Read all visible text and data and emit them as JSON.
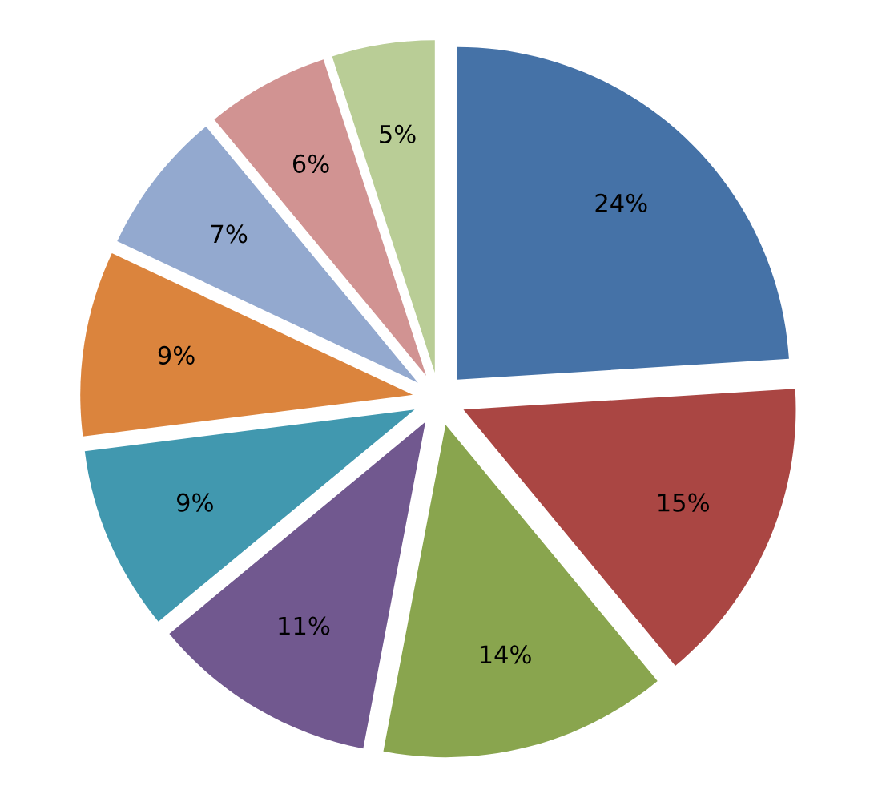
{
  "chart_data": {
    "type": "pie",
    "categories": [
      null,
      null,
      null,
      null,
      null,
      null,
      null,
      null,
      null
    ],
    "values": [
      24,
      15,
      14,
      11,
      9,
      9,
      7,
      6,
      5
    ],
    "value_labels": [
      "24%",
      "15%",
      "14%",
      "11%",
      "9%",
      "9%",
      "7%",
      "6%",
      "5%"
    ],
    "colors": [
      "#4572a7",
      "#aa4643",
      "#89a54e",
      "#71588f",
      "#4198af",
      "#db843d",
      "#93a9cf",
      "#d19392",
      "#b9cd96"
    ]
  }
}
